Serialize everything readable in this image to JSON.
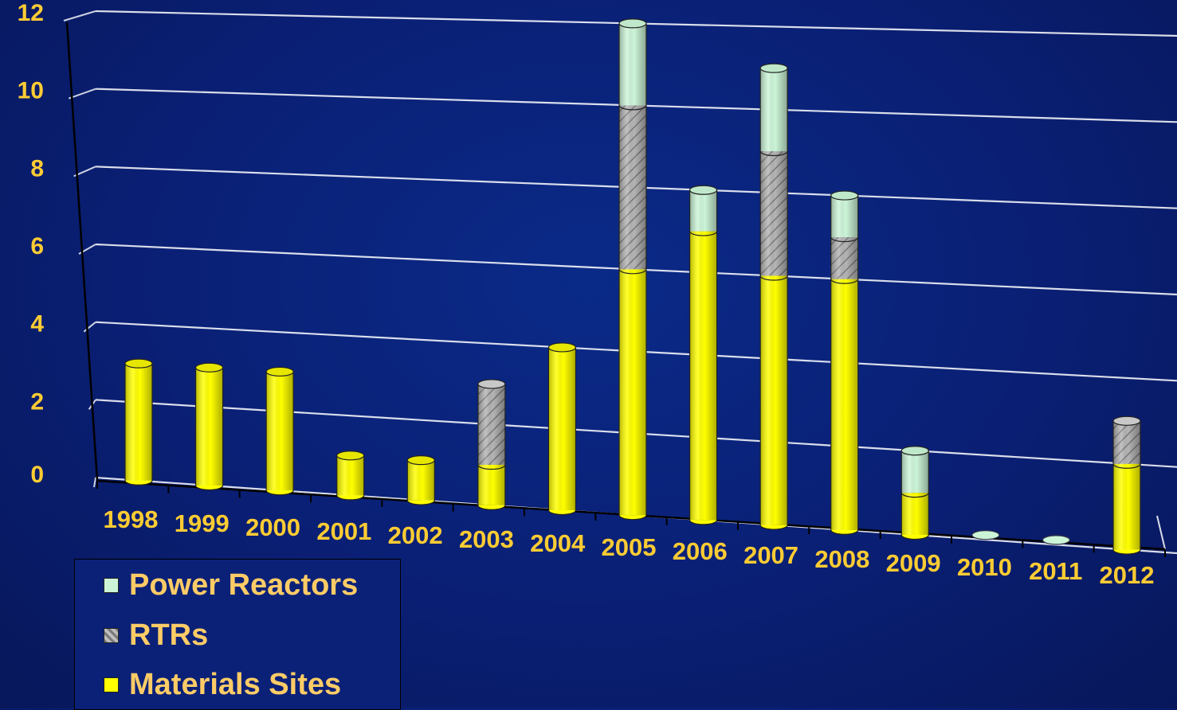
{
  "colors": {
    "materials": "#ffff00",
    "rtrs": "#aaaaaa",
    "power": "#ccf5d8",
    "tick_text": "#ffcc33",
    "legend_text": "#ffcc66",
    "gridline": "#ffffff"
  },
  "chart_data": {
    "type": "bar",
    "stacked": true,
    "categories": [
      "1998",
      "1999",
      "2000",
      "2001",
      "2002",
      "2003",
      "2004",
      "2005",
      "2006",
      "2007",
      "2008",
      "2009",
      "2010",
      "2011",
      "2012"
    ],
    "series": [
      {
        "name": "Materials Sites",
        "values": [
          3,
          3,
          3,
          1,
          1,
          1,
          4,
          6,
          7,
          6,
          6,
          1,
          0,
          0,
          2
        ]
      },
      {
        "name": "RTRs",
        "values": [
          0,
          0,
          0,
          0,
          0,
          2,
          0,
          4,
          0,
          3,
          1,
          0,
          0,
          0,
          1
        ]
      },
      {
        "name": "Power Reactors",
        "values": [
          0,
          0,
          0,
          0,
          0,
          0,
          0,
          2,
          1,
          2,
          1,
          1,
          0,
          0,
          0
        ]
      }
    ],
    "ylim": [
      0,
      12
    ],
    "yticks": [
      "0",
      "2",
      "4",
      "6",
      "8",
      "10",
      "12"
    ],
    "grid": true,
    "legend_position": "bottom-left"
  },
  "legend": {
    "items": [
      {
        "label": "Power Reactors",
        "icon": "light-green-square"
      },
      {
        "label": "RTRs",
        "icon": "hatched-gray-square"
      },
      {
        "label": "Materials Sites",
        "icon": "yellow-square"
      }
    ]
  }
}
